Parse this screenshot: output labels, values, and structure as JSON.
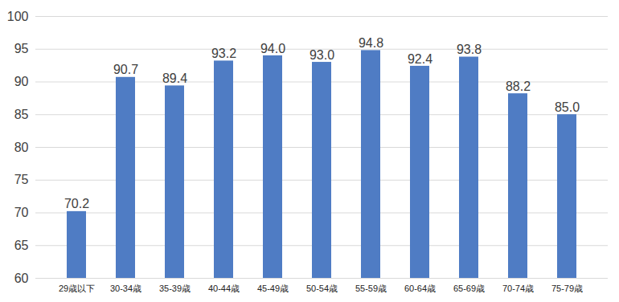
{
  "chart_data": {
    "type": "bar",
    "categories": [
      "29歳以下",
      "30-34歳",
      "35-39歳",
      "40-44歳",
      "45-49歳",
      "50-54歳",
      "55-59歳",
      "60-64歳",
      "65-69歳",
      "70-74歳",
      "75-79歳"
    ],
    "values": [
      70.2,
      90.7,
      89.4,
      93.2,
      94.0,
      93.0,
      94.8,
      92.4,
      93.8,
      88.2,
      85.0
    ],
    "value_labels": [
      "70.2",
      "90.7",
      "89.4",
      "93.2",
      "94.0",
      "93.0",
      "94.8",
      "92.4",
      "93.8",
      "88.2",
      "85.0"
    ],
    "color": "#4f7cc4",
    "ylim": [
      60,
      100
    ],
    "yticks": [
      60,
      65,
      70,
      75,
      80,
      85,
      90,
      95,
      100
    ],
    "grid": true,
    "data_labels": true
  }
}
